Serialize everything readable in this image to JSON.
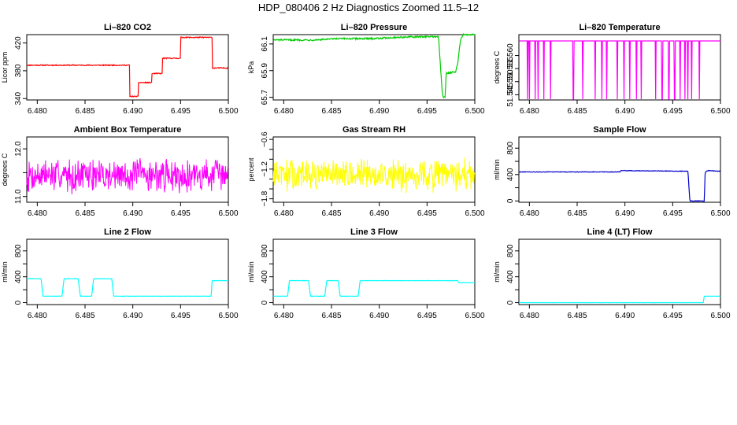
{
  "figure": {
    "title": "HDP_080406  2 Hz Diagnostics Zoomed 11.5–12"
  },
  "chart_data": [
    {
      "type": "line",
      "title": "Li–820 CO2",
      "ylabel": "Licor ppm",
      "color": "#ff0000",
      "xlim": [
        6.4789,
        6.5
      ],
      "ylim": [
        338,
        432
      ],
      "xticks": [
        6.48,
        6.485,
        6.49,
        6.495,
        6.5
      ],
      "xtick_labels": [
        "6.480",
        "6.485",
        "6.490",
        "6.495",
        "6.500"
      ],
      "yticks": [
        340,
        380,
        420
      ],
      "ytick_labels": [
        "340",
        "380",
        "420"
      ],
      "noise": 0.7,
      "mode": "step",
      "x": [
        6.4789,
        6.4897,
        6.4897,
        6.4906,
        6.4906,
        6.492,
        6.492,
        6.4931,
        6.4931,
        6.495,
        6.495,
        6.4983,
        6.4983,
        6.5
      ],
      "y": [
        388,
        388,
        343,
        343,
        363,
        363,
        376,
        376,
        398,
        398,
        428,
        428,
        384,
        384
      ]
    },
    {
      "type": "line",
      "title": "Li–820 Pressure",
      "ylabel": "kPa",
      "color": "#00cc00",
      "xlim": [
        6.4789,
        6.5
      ],
      "ylim": [
        65.68,
        66.17
      ],
      "xticks": [
        6.48,
        6.485,
        6.49,
        6.495,
        6.5
      ],
      "xtick_labels": [
        "6.480",
        "6.485",
        "6.490",
        "6.495",
        "6.500"
      ],
      "yticks": [
        65.7,
        65.9,
        66.1
      ],
      "ytick_labels": [
        "65.7",
        "65.9",
        "66.1"
      ],
      "noise": 0.006,
      "mode": "line",
      "x": [
        6.4789,
        6.483,
        6.486,
        6.489,
        6.492,
        6.495,
        6.4962,
        6.4966,
        6.4967,
        6.4969,
        6.497,
        6.498,
        6.4982,
        6.4985,
        6.4988,
        6.5
      ],
      "y": [
        66.13,
        66.13,
        66.14,
        66.14,
        66.15,
        66.155,
        66.155,
        65.73,
        65.7,
        65.7,
        65.88,
        65.89,
        65.95,
        66.13,
        66.17,
        66.17
      ]
    },
    {
      "type": "line",
      "title": "Li–820 Temperature",
      "ylabel": "degrees C",
      "color": "#ff00ff",
      "xlim": [
        6.4789,
        6.5
      ],
      "ylim": [
        51.543,
        51.568
      ],
      "xticks": [
        6.48,
        6.485,
        6.49,
        6.495,
        6.5
      ],
      "xtick_labels": [
        "6.480",
        "6.485",
        "6.490",
        "6.495",
        "6.500"
      ],
      "yticks": [
        51.545,
        51.55,
        51.555,
        51.56
      ],
      "ytick_labels": [
        "51.545",
        "51.550",
        "51.555",
        "51.560"
      ],
      "mode": "line",
      "baseline": 51.5656,
      "low": 51.5433,
      "dips": [
        6.4798,
        6.48,
        6.4806,
        6.4809,
        6.4815,
        6.4822,
        6.4846,
        6.4856,
        6.4869,
        6.4876,
        6.4881,
        6.4892,
        6.4899,
        6.4905,
        6.4912,
        6.4917,
        6.4932,
        6.4939,
        6.4946,
        6.4952,
        6.4958,
        6.4963,
        6.4966,
        6.497,
        6.4978
      ]
    },
    {
      "type": "line",
      "title": "Ambient Box Temperature",
      "ylabel": "degrees C",
      "color": "#ff00ff",
      "xlim": [
        6.4789,
        6.5
      ],
      "ylim": [
        10.88,
        12.25
      ],
      "xticks": [
        6.48,
        6.485,
        6.49,
        6.495,
        6.5
      ],
      "xtick_labels": [
        "6.480",
        "6.485",
        "6.490",
        "6.495",
        "6.500"
      ],
      "yticks": [
        11.0,
        11.5,
        12.0
      ],
      "ytick_labels": [
        "11.0",
        "",
        "12.0"
      ],
      "mode": "noise",
      "mean": 11.45,
      "spread": 0.55,
      "seed": 7
    },
    {
      "type": "line",
      "title": "Gas Stream RH",
      "ylabel": "percent",
      "color": "#ffff00",
      "xlim": [
        6.4789,
        6.5
      ],
      "ylim": [
        -1.87,
        -0.55
      ],
      "xticks": [
        6.48,
        6.485,
        6.49,
        6.495,
        6.5
      ],
      "xtick_labels": [
        "6.480",
        "6.485",
        "6.490",
        "6.495",
        "6.500"
      ],
      "yticks": [
        -1.8,
        -1.6,
        -1.4,
        -1.2,
        -1.0,
        -0.8,
        -0.6
      ],
      "ytick_labels": [
        "−1.8",
        "",
        "",
        "−1.2",
        "",
        "",
        "−0.6"
      ],
      "mode": "noise",
      "mean": -1.32,
      "spread": 0.5,
      "seed": 13
    },
    {
      "type": "line",
      "title": "Sample Flow",
      "ylabel": "ml/min",
      "color": "#0000cc",
      "xlim": [
        6.4789,
        6.5
      ],
      "ylim": [
        -20,
        970
      ],
      "xticks": [
        6.48,
        6.485,
        6.49,
        6.495,
        6.5
      ],
      "xtick_labels": [
        "6.480",
        "6.485",
        "6.490",
        "6.495",
        "6.500"
      ],
      "yticks": [
        0,
        200,
        400,
        600,
        800
      ],
      "ytick_labels": [
        "0",
        "",
        "400",
        "",
        "800"
      ],
      "noise": 4,
      "mode": "line",
      "x": [
        6.4789,
        6.4895,
        6.4896,
        6.4966,
        6.4967,
        6.4968,
        6.4983,
        6.4984,
        6.4987,
        6.5
      ],
      "y": [
        440,
        440,
        460,
        450,
        200,
        0,
        0,
        440,
        460,
        450
      ]
    },
    {
      "type": "line",
      "title": "Line 2 Flow",
      "ylabel": "ml/min",
      "color": "#00ffff",
      "xlim": [
        6.4789,
        6.5
      ],
      "ylim": [
        -30,
        980
      ],
      "xticks": [
        6.48,
        6.485,
        6.49,
        6.495,
        6.5
      ],
      "xtick_labels": [
        "6.480",
        "6.485",
        "6.490",
        "6.495",
        "6.500"
      ],
      "yticks": [
        0,
        200,
        400,
        600,
        800
      ],
      "ytick_labels": [
        "0",
        "",
        "400",
        "",
        "800"
      ],
      "noise": 2,
      "mode": "line",
      "x": [
        6.4789,
        6.4804,
        6.4806,
        6.4826,
        6.4828,
        6.4843,
        6.4845,
        6.4857,
        6.4859,
        6.4878,
        6.488,
        6.4892,
        6.4894,
        6.4982,
        6.4983,
        6.5
      ],
      "y": [
        370,
        370,
        100,
        100,
        370,
        370,
        100,
        100,
        370,
        370,
        100,
        100,
        100,
        100,
        340,
        340
      ]
    },
    {
      "type": "line",
      "title": "Line 3 Flow",
      "ylabel": "ml/min",
      "color": "#00ffff",
      "xlim": [
        6.4789,
        6.5
      ],
      "ylim": [
        -30,
        980
      ],
      "xticks": [
        6.48,
        6.485,
        6.49,
        6.495,
        6.5
      ],
      "xtick_labels": [
        "6.480",
        "6.485",
        "6.490",
        "6.495",
        "6.500"
      ],
      "yticks": [
        0,
        200,
        400,
        600,
        800
      ],
      "ytick_labels": [
        "0",
        "",
        "400",
        "",
        "800"
      ],
      "noise": 2,
      "mode": "line",
      "x": [
        6.4789,
        6.4804,
        6.4806,
        6.4826,
        6.4828,
        6.4843,
        6.4845,
        6.4857,
        6.4859,
        6.4878,
        6.488,
        6.4982,
        6.4983,
        6.5
      ],
      "y": [
        100,
        100,
        340,
        340,
        100,
        100,
        340,
        340,
        100,
        100,
        340,
        340,
        310,
        310
      ]
    },
    {
      "type": "line",
      "title": "Line 4 (LT) Flow",
      "ylabel": "ml/min",
      "color": "#00ffff",
      "xlim": [
        6.4789,
        6.5
      ],
      "ylim": [
        -30,
        980
      ],
      "xticks": [
        6.48,
        6.485,
        6.49,
        6.495,
        6.5
      ],
      "xtick_labels": [
        "6.480",
        "6.485",
        "6.490",
        "6.495",
        "6.500"
      ],
      "yticks": [
        0,
        200,
        400,
        600,
        800
      ],
      "ytick_labels": [
        "0",
        "",
        "400",
        "",
        "800"
      ],
      "noise": 1,
      "mode": "line",
      "x": [
        6.4789,
        6.4982,
        6.4983,
        6.5
      ],
      "y": [
        0,
        0,
        100,
        100
      ]
    }
  ]
}
